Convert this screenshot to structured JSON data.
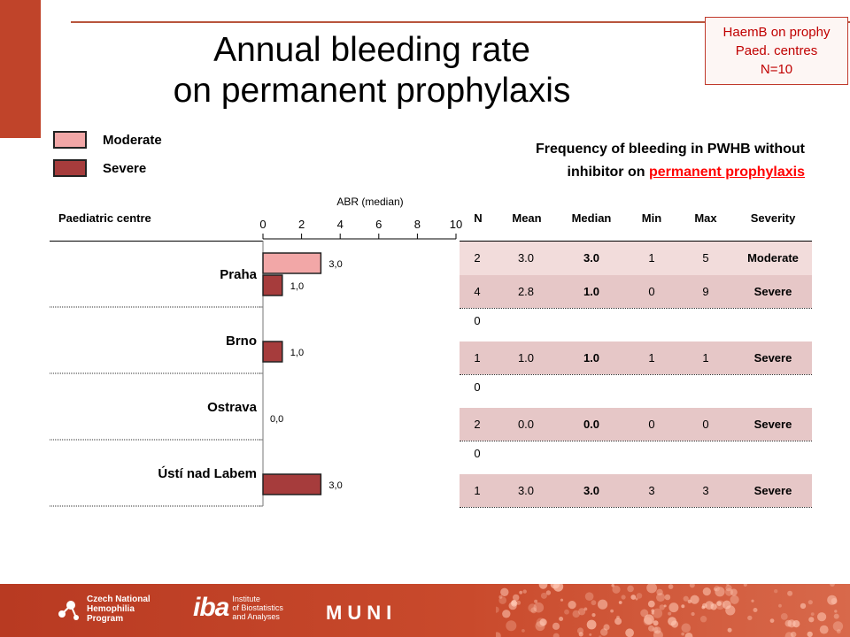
{
  "title": {
    "line1": "Annual bleeding rate",
    "line2": "on permanent prophylaxis"
  },
  "info_box": {
    "line1": "HaemB on prophy",
    "line2": "Paed. centres",
    "line3": "N=10"
  },
  "legend": [
    {
      "label": "Moderate",
      "color": "#f2a7a7"
    },
    {
      "label": "Severe",
      "color": "#a63c3c"
    }
  ],
  "subtitle": {
    "line1": "Frequency of bleeding in PWHB without",
    "line2_prefix": "inhibitor on ",
    "line2_highlight": "permanent prophylaxis"
  },
  "row_header": "Paediatric centre",
  "chart_data": {
    "type": "bar",
    "orientation": "horizontal",
    "title": "",
    "xlabel": "ABR (median)",
    "xlim": [
      0,
      10
    ],
    "x_ticks": [
      "0",
      "2",
      "4",
      "6",
      "8",
      "10"
    ],
    "categories": [
      "Praha",
      "Brno",
      "Ostrava",
      "Ústí nad Labem"
    ],
    "series": [
      {
        "name": "Moderate",
        "color": "#f2a7a7",
        "values": [
          3.0,
          null,
          null,
          null
        ],
        "labels": [
          "3,0",
          "",
          "",
          ""
        ]
      },
      {
        "name": "Severe",
        "color": "#a63c3c",
        "values": [
          1.0,
          1.0,
          0.0,
          3.0
        ],
        "labels": [
          "1,0",
          "1,0",
          "0,0",
          "3,0"
        ]
      }
    ],
    "grid": false,
    "legend": "top-left"
  },
  "table": {
    "headers": [
      "N",
      "Mean",
      "Median",
      "Min",
      "Max",
      "Severity"
    ],
    "rows": [
      {
        "kind": "moderate",
        "n": "2",
        "mean": "3.0",
        "median": "3.0",
        "min": "1",
        "max": "5",
        "severity": "Moderate"
      },
      {
        "kind": "severe",
        "n": "4",
        "mean": "2.8",
        "median": "1.0",
        "min": "0",
        "max": "9",
        "severity": "Severe"
      },
      {
        "kind": "empty",
        "n": "0",
        "mean": "",
        "median": "",
        "min": "",
        "max": "",
        "severity": ""
      },
      {
        "kind": "severe",
        "n": "1",
        "mean": "1.0",
        "median": "1.0",
        "min": "1",
        "max": "1",
        "severity": "Severe"
      },
      {
        "kind": "empty",
        "n": "0",
        "mean": "",
        "median": "",
        "min": "",
        "max": "",
        "severity": ""
      },
      {
        "kind": "severe",
        "n": "2",
        "mean": "0.0",
        "median": "0.0",
        "min": "0",
        "max": "0",
        "severity": "Severe"
      },
      {
        "kind": "empty",
        "n": "0",
        "mean": "",
        "median": "",
        "min": "",
        "max": "",
        "severity": ""
      },
      {
        "kind": "severe",
        "n": "1",
        "mean": "3.0",
        "median": "3.0",
        "min": "3",
        "max": "3",
        "severity": "Severe"
      }
    ]
  },
  "footer": {
    "cnhp": [
      "Czech National",
      "Hemophilia",
      "Program"
    ],
    "iba_mark": "iba",
    "iba_text": [
      "Institute",
      "of Biostatistics",
      "and Analyses"
    ],
    "muni": "MUNI"
  }
}
